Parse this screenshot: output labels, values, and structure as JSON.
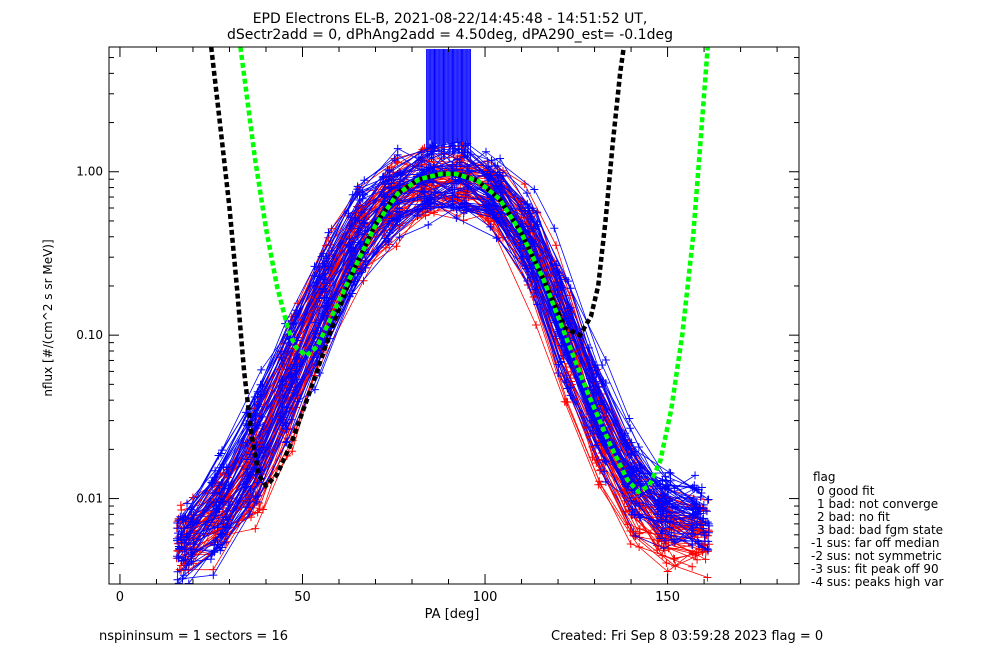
{
  "chart_data": {
    "type": "scatter",
    "title_line1": "EPD Electrons EL-B, 2021-08-22/14:45:48 - 14:51:52 UT,",
    "title_line2": "dSectr2add = 0, dPhAng2add = 4.50deg, dPA290_est=  -0.1deg",
    "xlabel": "PA [deg]",
    "ylabel": "nflux [#/(cm^2 s sr MeV)]",
    "xlim": [
      -3,
      186
    ],
    "ylim": [
      0.003,
      5.8
    ],
    "yscale": "log",
    "x_ticks": [
      {
        "v": 0,
        "label": "0"
      },
      {
        "v": 50,
        "label": "50"
      },
      {
        "v": 100,
        "label": "100"
      },
      {
        "v": 150,
        "label": "150"
      }
    ],
    "y_ticks": [
      {
        "v": 0.01,
        "label": "0.01"
      },
      {
        "v": 0.1,
        "label": "0.10"
      },
      {
        "v": 1.0,
        "label": "1.00"
      }
    ],
    "colors": {
      "red": "#ff0000",
      "blue": "#0000ff",
      "black": "#000000",
      "green": "#00ff00",
      "axes": "#000000"
    },
    "series": [
      {
        "color": "red",
        "points": [
          [
            22,
            0.006
          ],
          [
            28,
            0.009
          ],
          [
            35,
            0.012
          ],
          [
            42,
            0.03
          ],
          [
            50,
            0.09
          ],
          [
            58,
            0.22
          ],
          [
            66,
            0.45
          ],
          [
            74,
            0.7
          ],
          [
            82,
            0.85
          ],
          [
            90,
            0.9
          ],
          [
            98,
            0.85
          ],
          [
            106,
            0.62
          ],
          [
            114,
            0.33
          ],
          [
            122,
            0.1
          ],
          [
            130,
            0.03
          ],
          [
            138,
            0.012
          ],
          [
            146,
            0.007
          ],
          [
            154,
            0.006
          ],
          [
            160,
            0.006
          ]
        ]
      },
      {
        "color": "blue",
        "points": [
          [
            20,
            0.005
          ],
          [
            27,
            0.008
          ],
          [
            34,
            0.015
          ],
          [
            42,
            0.035
          ],
          [
            50,
            0.08
          ],
          [
            58,
            0.2
          ],
          [
            66,
            0.42
          ],
          [
            74,
            0.68
          ],
          [
            82,
            0.82
          ],
          [
            90,
            0.88
          ],
          [
            98,
            0.84
          ],
          [
            106,
            0.6
          ],
          [
            114,
            0.32
          ],
          [
            122,
            0.1
          ],
          [
            130,
            0.035
          ],
          [
            138,
            0.015
          ],
          [
            146,
            0.009
          ],
          [
            154,
            0.008
          ],
          [
            160,
            0.007
          ]
        ]
      }
    ],
    "fit_curves": [
      {
        "color": "black",
        "style": "dashed",
        "points": [
          [
            25,
            5.8
          ],
          [
            28,
            1.5
          ],
          [
            30,
            0.6
          ],
          [
            32,
            0.2
          ],
          [
            34,
            0.06
          ],
          [
            36,
            0.025
          ],
          [
            38,
            0.014
          ],
          [
            40,
            0.012
          ],
          [
            43,
            0.014
          ],
          [
            47,
            0.022
          ],
          [
            52,
            0.045
          ],
          [
            58,
            0.11
          ],
          [
            64,
            0.25
          ],
          [
            70,
            0.48
          ],
          [
            76,
            0.74
          ],
          [
            82,
            0.9
          ],
          [
            88,
            0.97
          ],
          [
            92,
            0.97
          ],
          [
            98,
            0.88
          ],
          [
            104,
            0.68
          ],
          [
            110,
            0.42
          ],
          [
            116,
            0.22
          ],
          [
            122,
            0.11
          ],
          [
            126,
            0.1
          ],
          [
            129,
            0.13
          ],
          [
            131,
            0.2
          ],
          [
            133,
            0.5
          ],
          [
            135,
            1.5
          ],
          [
            137,
            4.0
          ],
          [
            138,
            5.8
          ]
        ]
      },
      {
        "color": "green",
        "style": "dashed",
        "points": [
          [
            33,
            5.8
          ],
          [
            37,
            1.2
          ],
          [
            40,
            0.45
          ],
          [
            43,
            0.2
          ],
          [
            46,
            0.11
          ],
          [
            48,
            0.085
          ],
          [
            51,
            0.075
          ],
          [
            54,
            0.085
          ],
          [
            58,
            0.13
          ],
          [
            64,
            0.25
          ],
          [
            70,
            0.47
          ],
          [
            76,
            0.73
          ],
          [
            82,
            0.9
          ],
          [
            88,
            0.97
          ],
          [
            92,
            0.97
          ],
          [
            98,
            0.88
          ],
          [
            104,
            0.68
          ],
          [
            110,
            0.42
          ],
          [
            116,
            0.22
          ],
          [
            122,
            0.1
          ],
          [
            128,
            0.045
          ],
          [
            134,
            0.022
          ],
          [
            139,
            0.013
          ],
          [
            142,
            0.011
          ],
          [
            145,
            0.012
          ],
          [
            148,
            0.017
          ],
          [
            151,
            0.035
          ],
          [
            154,
            0.1
          ],
          [
            157,
            0.4
          ],
          [
            159,
            1.5
          ],
          [
            161,
            5.8
          ]
        ]
      }
    ],
    "spike_cluster": {
      "color": "blue",
      "x_range": [
        84,
        96
      ],
      "y_bottom": 1.2,
      "y_top": 5.8,
      "count": 40
    },
    "legend_title": "flag",
    "legend": [
      "0 good fit",
      "1 bad: not converge",
      "2 bad: no fit",
      "3 bad: bad fgm state",
      "-1 sus: far off median",
      "-2 sus: not symmetric",
      "-3 sus: fit peak off 90",
      "-4 sus: peaks high var"
    ],
    "legend_position": "bottom-right outside",
    "grid": false
  },
  "footer": {
    "left": "nspininsum =  1  sectors = 16",
    "right": "Created: Fri Sep  8 03:59:28 2023   flag = 0"
  }
}
